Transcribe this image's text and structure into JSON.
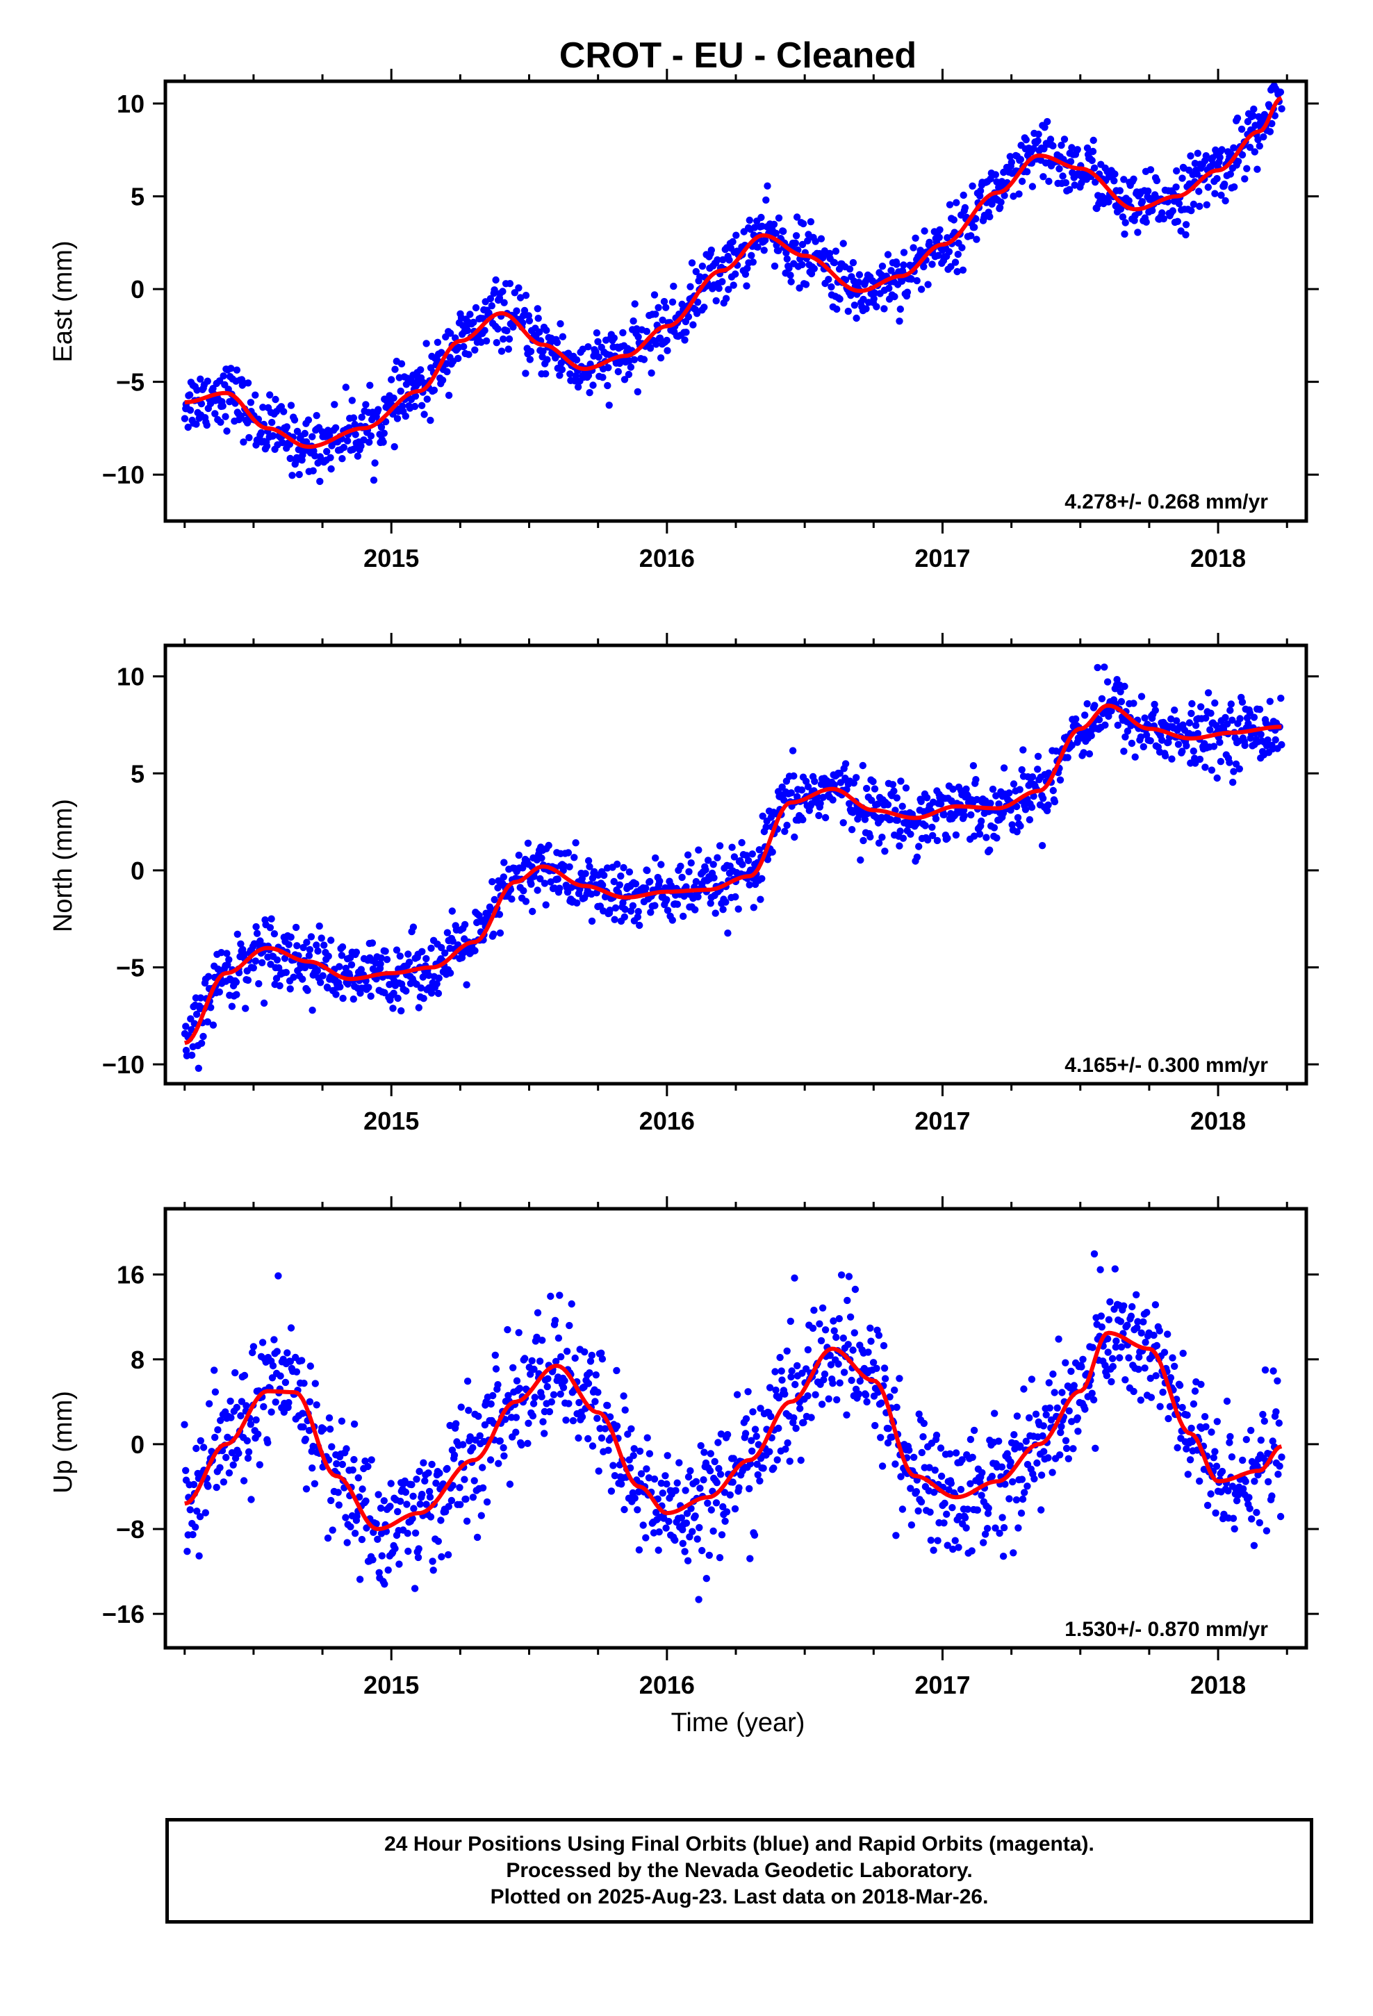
{
  "title": "CROT  - EU - Cleaned",
  "footer": {
    "line1": "24 Hour Positions Using Final Orbits (blue) and Rapid Orbits (magenta).",
    "line2": "Processed by the Nevada Geodetic Laboratory.",
    "line3": "Plotted on 2025-Aug-23. Last data on 2018-Mar-26."
  },
  "colors": {
    "points": "#0000ff",
    "fit": "#ff0000",
    "frame": "#000000"
  },
  "chart_data": [
    {
      "type": "scatter",
      "component": "east",
      "ylabel": "East (mm)",
      "xlabel": "",
      "rate_label": "4.278+/- 0.268 mm/yr",
      "xlim": [
        2014.18,
        2018.32
      ],
      "ylim": [
        -12.5,
        11.2
      ],
      "xticks": [
        2015,
        2016,
        2017,
        2018
      ],
      "yticks": [
        -10,
        -5,
        0,
        5,
        10
      ],
      "ytick_labels": [
        "−10",
        "−5",
        "0",
        "5",
        "10"
      ],
      "fit": {
        "x": [
          2014.25,
          2014.4,
          2014.55,
          2014.7,
          2014.9,
          2015.1,
          2015.25,
          2015.4,
          2015.55,
          2015.7,
          2015.85,
          2016.0,
          2016.2,
          2016.35,
          2016.5,
          2016.7,
          2016.85,
          2017.0,
          2017.2,
          2017.35,
          2017.5,
          2017.7,
          2017.85,
          2018.0,
          2018.15,
          2018.23
        ],
        "y": [
          -6.1,
          -5.6,
          -7.5,
          -8.5,
          -7.5,
          -5.5,
          -2.8,
          -1.3,
          -3.0,
          -4.3,
          -3.6,
          -2.0,
          1.0,
          2.9,
          1.8,
          -0.1,
          0.7,
          2.4,
          5.2,
          7.2,
          6.5,
          4.3,
          5.0,
          6.4,
          8.5,
          10.3
        ]
      },
      "noise": 1.0,
      "range_x": [
        2014.25,
        2018.23
      ]
    },
    {
      "type": "scatter",
      "component": "north",
      "ylabel": "North (mm)",
      "xlabel": "",
      "rate_label": "4.165+/- 0.300 mm/yr",
      "xlim": [
        2014.18,
        2018.32
      ],
      "ylim": [
        -11.0,
        11.6
      ],
      "xticks": [
        2015,
        2016,
        2017,
        2018
      ],
      "yticks": [
        -10,
        -5,
        0,
        5,
        10
      ],
      "ytick_labels": [
        "−10",
        "−5",
        "0",
        "5",
        "10"
      ],
      "fit": {
        "x": [
          2014.25,
          2014.4,
          2014.55,
          2014.7,
          2014.85,
          2015.0,
          2015.15,
          2015.3,
          2015.45,
          2015.55,
          2015.7,
          2015.85,
          2016.0,
          2016.15,
          2016.3,
          2016.45,
          2016.6,
          2016.75,
          2016.9,
          2017.05,
          2017.2,
          2017.35,
          2017.5,
          2017.6,
          2017.75,
          2017.9,
          2018.05,
          2018.23
        ],
        "y": [
          -8.9,
          -5.3,
          -4.0,
          -4.7,
          -5.6,
          -5.3,
          -5.0,
          -3.7,
          -0.6,
          0.2,
          -0.8,
          -1.4,
          -1.1,
          -1.0,
          -0.3,
          3.5,
          4.2,
          3.1,
          2.7,
          3.3,
          3.2,
          4.1,
          7.3,
          8.5,
          7.3,
          6.8,
          7.1,
          7.4
        ]
      },
      "noise": 1.0,
      "range_x": [
        2014.25,
        2018.23
      ]
    },
    {
      "type": "scatter",
      "component": "up",
      "ylabel": "Up (mm)",
      "xlabel": "Time (year)",
      "rate_label": "1.530+/- 0.870 mm/yr",
      "xlim": [
        2014.18,
        2018.32
      ],
      "ylim": [
        -19.2,
        22.2
      ],
      "xticks": [
        2015,
        2016,
        2017,
        2018
      ],
      "yticks": [
        -16,
        -8,
        0,
        8,
        16
      ],
      "ytick_labels": [
        "−16",
        "−8",
        "0",
        "8",
        "16"
      ],
      "fit": {
        "x": [
          2014.25,
          2014.4,
          2014.55,
          2014.65,
          2014.8,
          2014.95,
          2015.1,
          2015.3,
          2015.45,
          2015.6,
          2015.75,
          2015.9,
          2016.0,
          2016.15,
          2016.3,
          2016.45,
          2016.6,
          2016.75,
          2016.9,
          2017.05,
          2017.2,
          2017.35,
          2017.5,
          2017.6,
          2017.75,
          2017.9,
          2018.0,
          2018.15,
          2018.23
        ],
        "y": [
          -5.6,
          0.0,
          5.0,
          4.9,
          -3.0,
          -8.0,
          -6.5,
          -1.5,
          4.0,
          7.4,
          3.0,
          -4.0,
          -6.5,
          -5.0,
          -1.5,
          4.0,
          9.0,
          6.0,
          -3.0,
          -5.0,
          -3.5,
          0.0,
          5.0,
          10.5,
          9.0,
          1.0,
          -3.5,
          -2.5,
          -0.2
        ]
      },
      "noise": 3.6,
      "range_x": [
        2014.25,
        2018.23
      ]
    }
  ]
}
